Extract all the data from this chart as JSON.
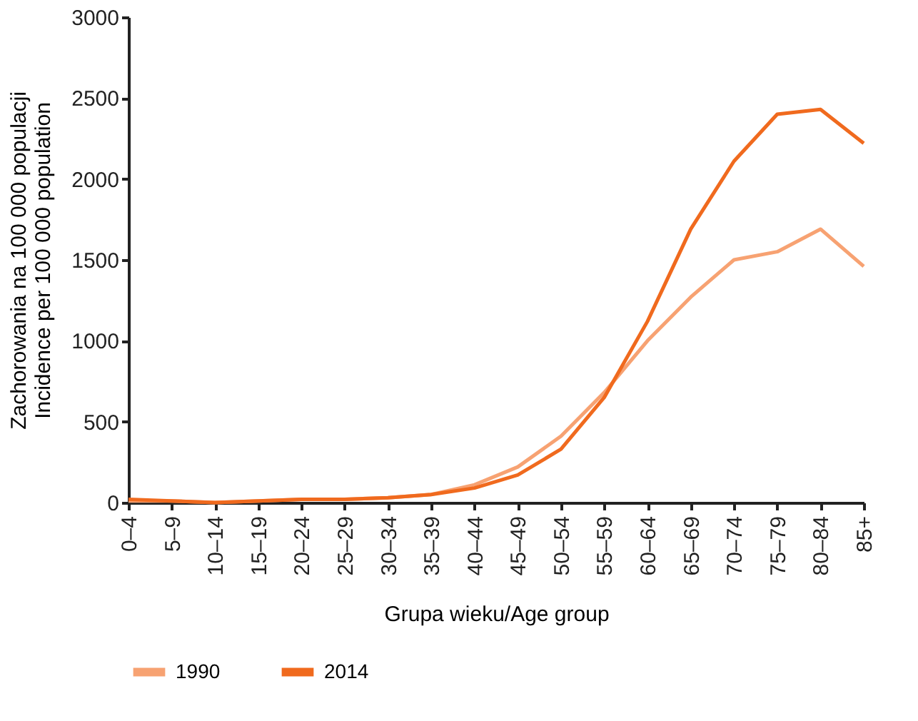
{
  "chart_data": {
    "type": "line",
    "xlabel": "Grupa wieku/Age group",
    "ylabel": "Zachorowania na 100 000 populacji\nIncidence per 100 000 population",
    "categories": [
      "0–4",
      "5–9",
      "10–14",
      "15–19",
      "20–24",
      "25–29",
      "30–34",
      "35–39",
      "40–44",
      "45–49",
      "50–54",
      "55–59",
      "60–64",
      "65–69",
      "70–74",
      "75–79",
      "80–84",
      "85+"
    ],
    "series": [
      {
        "name": "1990",
        "color": "#f7a272",
        "values": [
          10,
          10,
          0,
          10,
          20,
          20,
          30,
          50,
          110,
          220,
          410,
          680,
          1000,
          1270,
          1500,
          1550,
          1690,
          1460
        ]
      },
      {
        "name": "2014",
        "color": "#f06a1e",
        "values": [
          20,
          10,
          0,
          10,
          20,
          20,
          30,
          50,
          90,
          170,
          330,
          650,
          1120,
          1690,
          2110,
          2400,
          2430,
          2220
        ]
      }
    ],
    "ylim": [
      0,
      3000
    ],
    "yticks": [
      0,
      500,
      1000,
      1500,
      2000,
      2500,
      3000
    ],
    "grid": false,
    "legend": "bottom",
    "marker": "none",
    "line_style": "solid"
  }
}
